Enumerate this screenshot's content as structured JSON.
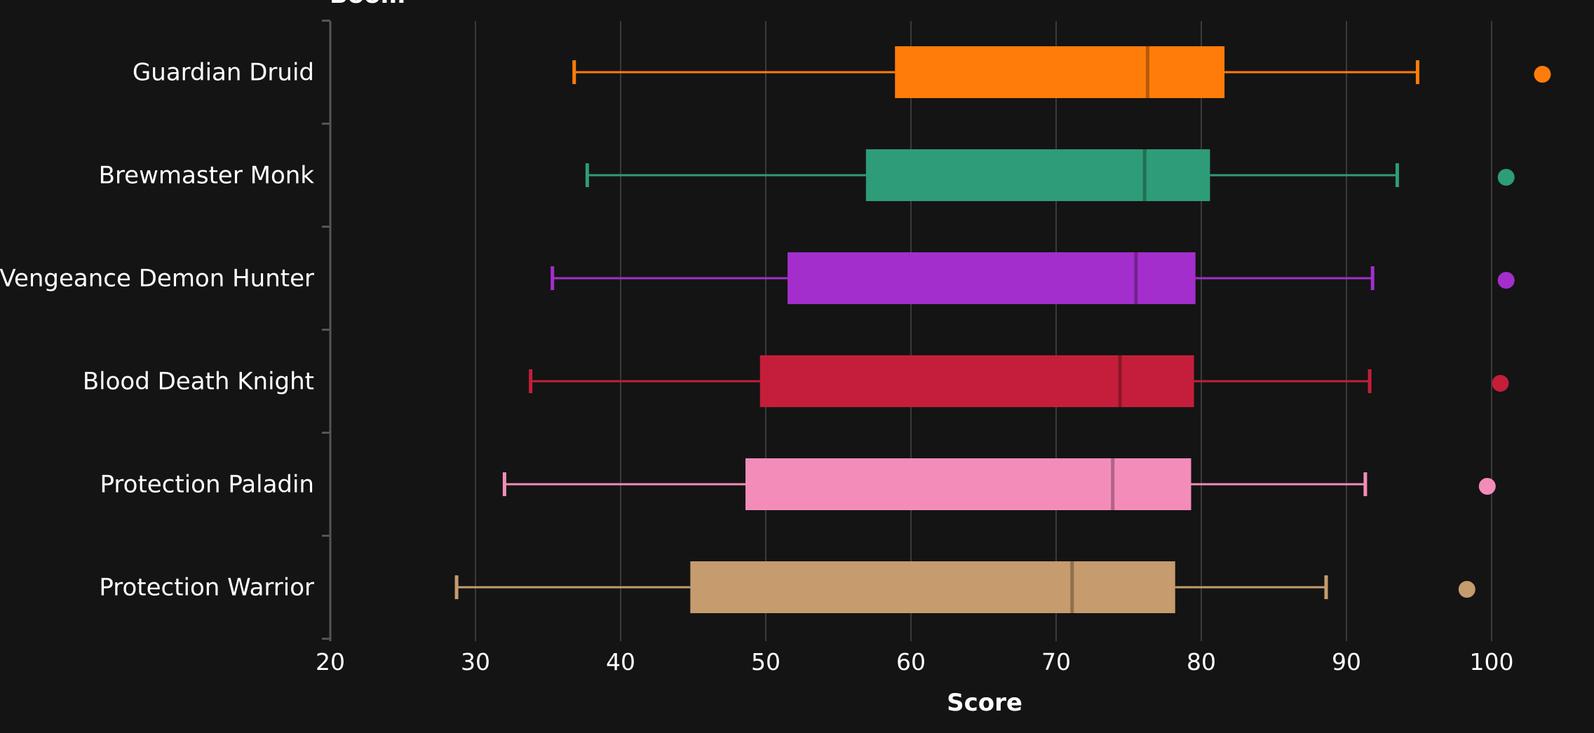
{
  "chart_data": {
    "type": "boxplot",
    "title": "",
    "title_visible_fragment": "Boom",
    "xlabel": "Score",
    "ylabel": "",
    "xlim": [
      20,
      104
    ],
    "xticks": [
      20,
      30,
      40,
      50,
      60,
      70,
      80,
      90,
      100
    ],
    "grid": "vertical",
    "background": "#141414",
    "categories": [
      "Guardian Druid",
      "Brewmaster Monk",
      "Vengeance Demon Hunter",
      "Blood Death Knight",
      "Protection Paladin",
      "Protection Warrior"
    ],
    "series": [
      {
        "category": "Guardian Druid",
        "color": "#ff7c0a",
        "whisker_low": 36.8,
        "q1": 58.9,
        "median": 76.3,
        "q3": 81.6,
        "whisker_high": 94.9,
        "outliers": [
          103.5
        ]
      },
      {
        "category": "Brewmaster Monk",
        "color": "#2e9c78",
        "whisker_low": 37.7,
        "q1": 56.9,
        "median": 76.1,
        "q3": 80.6,
        "whisker_high": 93.5,
        "outliers": [
          101.0
        ]
      },
      {
        "category": "Vengeance Demon Hunter",
        "color": "#a32ecc",
        "whisker_low": 35.3,
        "q1": 51.5,
        "median": 75.5,
        "q3": 79.6,
        "whisker_high": 91.8,
        "outliers": [
          101.0
        ]
      },
      {
        "category": "Blood Death Knight",
        "color": "#c41e3a",
        "whisker_low": 33.8,
        "q1": 49.6,
        "median": 74.4,
        "q3": 79.5,
        "whisker_high": 91.6,
        "outliers": [
          100.6
        ]
      },
      {
        "category": "Protection Paladin",
        "color": "#f48cba",
        "whisker_low": 32.0,
        "q1": 48.6,
        "median": 73.9,
        "q3": 79.3,
        "whisker_high": 91.3,
        "outliers": [
          99.7
        ]
      },
      {
        "category": "Protection Warrior",
        "color": "#c69b6d",
        "whisker_low": 28.7,
        "q1": 44.8,
        "median": 71.1,
        "q3": 78.2,
        "whisker_high": 88.6,
        "outliers": [
          98.3
        ]
      }
    ]
  }
}
